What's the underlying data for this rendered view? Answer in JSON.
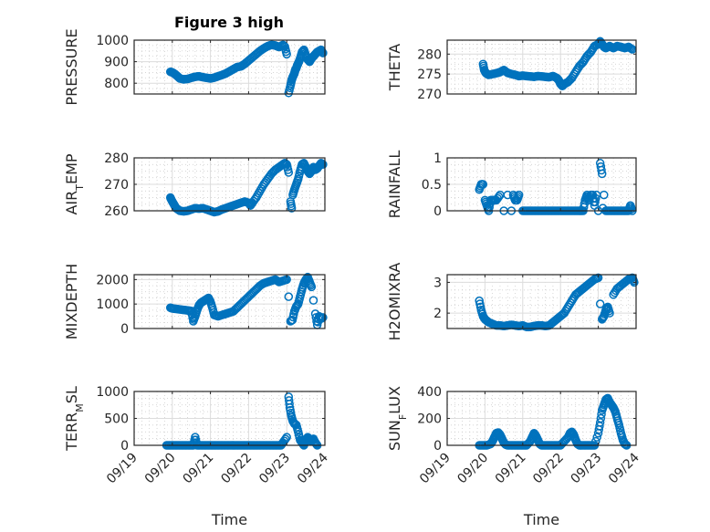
{
  "figure": {
    "title": "Figure 3 high",
    "marker_color": "#0072BD"
  },
  "chart_data": [
    {
      "type": "scatter",
      "name": "pressure",
      "title": "Figure 3 high",
      "ylabel": "PRESSURE",
      "ylabel_sub": "",
      "xlabel": "",
      "ylim": [
        750,
        1000
      ],
      "yticks": [
        800,
        900,
        1000
      ],
      "xlim_days": [
        0,
        5
      ],
      "xticks": [
        "09/19",
        "09/20",
        "09/21",
        "09/22",
        "09/23",
        "09/24"
      ],
      "show_xticklabels": false,
      "grid": true,
      "x_days": [
        0.95,
        1.0,
        1.05,
        1.1,
        1.15,
        1.2,
        1.3,
        1.4,
        1.5,
        1.6,
        1.7,
        1.8,
        1.9,
        2.0,
        2.1,
        2.2,
        2.3,
        2.4,
        2.5,
        2.6,
        2.7,
        2.8,
        2.9,
        3.0,
        3.1,
        3.2,
        3.3,
        3.4,
        3.5,
        3.6,
        3.7,
        3.8,
        3.9,
        3.95,
        4.0,
        4.05,
        4.1,
        4.13,
        4.16,
        4.2,
        4.22,
        4.25,
        4.28,
        4.32,
        4.36,
        4.4,
        4.45,
        4.5,
        4.55,
        4.6,
        4.65,
        4.7,
        4.75,
        4.8,
        4.85,
        4.9,
        4.95
      ],
      "y": [
        853,
        850,
        845,
        838,
        830,
        822,
        818,
        820,
        825,
        830,
        832,
        828,
        825,
        822,
        826,
        832,
        838,
        845,
        855,
        865,
        875,
        878,
        890,
        905,
        920,
        935,
        950,
        962,
        972,
        978,
        975,
        968,
        978,
        970,
        935,
        755,
        790,
        815,
        830,
        845,
        860,
        870,
        885,
        900,
        920,
        945,
        955,
        930,
        910,
        900,
        915,
        925,
        935,
        945,
        950,
        955,
        940
      ]
    },
    {
      "type": "scatter",
      "name": "theta",
      "ylabel": "THETA",
      "ylabel_sub": "",
      "xlabel": "",
      "ylim": [
        270,
        283.5
      ],
      "yticks": [
        270,
        275,
        280
      ],
      "xlim_days": [
        0,
        5
      ],
      "xticks": [
        "09/19",
        "09/20",
        "09/21",
        "09/22",
        "09/23",
        "09/24"
      ],
      "show_xticklabels": false,
      "grid": true,
      "x_days": [
        0.95,
        0.98,
        1.02,
        1.06,
        1.1,
        1.2,
        1.3,
        1.4,
        1.5,
        1.6,
        1.7,
        1.8,
        1.9,
        2.0,
        2.1,
        2.2,
        2.3,
        2.4,
        2.5,
        2.6,
        2.7,
        2.8,
        2.9,
        2.95,
        3.0,
        3.05,
        3.1,
        3.2,
        3.3,
        3.4,
        3.5,
        3.6,
        3.7,
        3.8,
        3.9,
        4.0,
        4.05,
        4.1,
        4.15,
        4.2,
        4.3,
        4.4,
        4.5,
        4.6,
        4.7,
        4.8,
        4.9
      ],
      "y": [
        277.5,
        276,
        275.3,
        275,
        274.8,
        275,
        275.2,
        275.5,
        276,
        275.3,
        275,
        274.8,
        274.5,
        274.6,
        274.5,
        274.4,
        274.3,
        274.5,
        274.4,
        274.3,
        274.2,
        274.5,
        274,
        273.5,
        272.5,
        272,
        272.5,
        273,
        274,
        275.5,
        277,
        278,
        279.5,
        280.5,
        282,
        282.5,
        283.2,
        282.5,
        281.8,
        281.5,
        282,
        281.5,
        282,
        281.8,
        281.5,
        281.8,
        281.2
      ]
    },
    {
      "type": "scatter",
      "name": "air-temp",
      "ylabel": "AIR",
      "ylabel_sub": "T",
      "ylabel_rest": "EMP",
      "xlabel": "",
      "ylim": [
        260,
        280
      ],
      "yticks": [
        260,
        270,
        280
      ],
      "xlim_days": [
        0,
        5
      ],
      "xticks": [
        "09/19",
        "09/20",
        "09/21",
        "09/22",
        "09/23",
        "09/24"
      ],
      "show_xticklabels": false,
      "grid": true,
      "x_days": [
        0.95,
        0.98,
        1.02,
        1.06,
        1.1,
        1.15,
        1.2,
        1.3,
        1.4,
        1.5,
        1.6,
        1.7,
        1.8,
        1.9,
        2.0,
        2.1,
        2.2,
        2.3,
        2.4,
        2.5,
        2.6,
        2.7,
        2.8,
        2.9,
        3.0,
        3.05,
        3.1,
        3.2,
        3.3,
        3.4,
        3.5,
        3.6,
        3.7,
        3.8,
        3.9,
        3.95,
        4.0,
        4.05,
        4.1,
        4.13,
        4.16,
        4.2,
        4.25,
        4.3,
        4.35,
        4.4,
        4.45,
        4.5,
        4.55,
        4.6,
        4.65,
        4.7,
        4.75,
        4.8,
        4.85,
        4.9,
        4.95
      ],
      "y": [
        265,
        264,
        263,
        262,
        261,
        260.5,
        260,
        259.8,
        260,
        260.5,
        261,
        260.8,
        261,
        260.5,
        260,
        259.5,
        259.8,
        260.5,
        261,
        261.5,
        262,
        262.5,
        263,
        263.5,
        263,
        262,
        263,
        265,
        267.5,
        270,
        272,
        274,
        275.5,
        276.5,
        277.5,
        278,
        277.5,
        274.5,
        263.5,
        261,
        266,
        268,
        270,
        272,
        275,
        277.5,
        278,
        276.5,
        275,
        274,
        275,
        276.5,
        275.5,
        276,
        277,
        278,
        277.5
      ]
    },
    {
      "type": "scatter",
      "name": "rainfall",
      "ylabel": "RAINFALL",
      "ylabel_sub": "",
      "xlabel": "",
      "ylim": [
        0,
        1
      ],
      "yticks": [
        0,
        0.5,
        1
      ],
      "xlim_days": [
        0,
        5
      ],
      "xticks": [
        "09/19",
        "09/20",
        "09/21",
        "09/22",
        "09/23",
        "09/24"
      ],
      "show_xticklabels": false,
      "grid": true,
      "x_days": [
        0.85,
        0.9,
        0.95,
        1.0,
        1.05,
        1.1,
        1.15,
        1.2,
        1.25,
        1.3,
        1.4,
        1.5,
        1.6,
        1.7,
        1.75,
        1.8,
        1.85,
        1.9,
        2.0,
        2.1,
        2.2,
        2.3,
        2.4,
        2.5,
        2.6,
        2.7,
        2.8,
        2.9,
        3.0,
        3.1,
        3.2,
        3.3,
        3.4,
        3.5,
        3.6,
        3.65,
        3.7,
        3.75,
        3.8,
        3.85,
        3.9,
        3.95,
        4.0,
        4.05,
        4.1,
        4.12,
        4.15,
        4.2,
        4.3,
        4.4,
        4.5,
        4.6,
        4.7,
        4.8,
        4.85,
        4.9
      ],
      "y": [
        0.4,
        0.5,
        0.5,
        0.2,
        0.1,
        0.0,
        0.2,
        0.2,
        0.2,
        0.2,
        0.3,
        0.0,
        0.3,
        0.0,
        0.3,
        0.2,
        0.2,
        0.3,
        0.0,
        0.0,
        0.0,
        0.0,
        0.0,
        0.0,
        0.0,
        0.0,
        0.0,
        0.0,
        0.0,
        0.0,
        0.0,
        0.0,
        0.0,
        0.0,
        0.0,
        0.2,
        0.3,
        0.2,
        0.3,
        0.3,
        0.1,
        0.3,
        0.0,
        0.9,
        0.7,
        0.05,
        0.3,
        0.0,
        0.0,
        0.0,
        0.0,
        0.0,
        0.0,
        0.0,
        0.1,
        0.0
      ]
    },
    {
      "type": "scatter",
      "name": "mixdepth",
      "ylabel": "MIXDEPTH",
      "ylabel_sub": "",
      "xlabel": "",
      "ylim": [
        0,
        2200
      ],
      "yticks": [
        0,
        1000,
        2000
      ],
      "xlim_days": [
        0,
        5
      ],
      "xticks": [
        "09/19",
        "09/20",
        "09/21",
        "09/22",
        "09/23",
        "09/24"
      ],
      "show_xticklabels": false,
      "grid": true,
      "x_days": [
        0.95,
        1.0,
        1.1,
        1.2,
        1.3,
        1.4,
        1.5,
        1.55,
        1.6,
        1.65,
        1.7,
        1.75,
        1.8,
        1.85,
        1.9,
        1.95,
        2.0,
        2.05,
        2.1,
        2.2,
        2.3,
        2.4,
        2.5,
        2.6,
        2.7,
        2.8,
        2.9,
        3.0,
        3.1,
        3.2,
        3.3,
        3.4,
        3.5,
        3.6,
        3.7,
        3.8,
        3.9,
        4.0,
        4.05,
        4.1,
        4.15,
        4.2,
        4.25,
        4.3,
        4.35,
        4.4,
        4.45,
        4.5,
        4.55,
        4.6,
        4.65,
        4.7,
        4.75,
        4.8,
        4.85,
        4.9,
        4.95
      ],
      "y": [
        850,
        820,
        800,
        780,
        760,
        740,
        720,
        300,
        500,
        750,
        950,
        1050,
        1100,
        1150,
        1200,
        1250,
        1100,
        850,
        550,
        500,
        550,
        600,
        650,
        700,
        850,
        1000,
        1150,
        1300,
        1450,
        1600,
        1750,
        1850,
        1900,
        1950,
        2000,
        1900,
        1950,
        2000,
        1300,
        300,
        350,
        700,
        900,
        1000,
        1300,
        1600,
        1850,
        2000,
        2100,
        1900,
        1700,
        1150,
        600,
        150,
        500,
        400,
        450
      ]
    },
    {
      "type": "scatter",
      "name": "h2omixra",
      "ylabel": "H2OMIXRA",
      "ylabel_sub": "",
      "xlabel": "",
      "ylim": [
        1.5,
        3.25
      ],
      "yticks": [
        2,
        3
      ],
      "xlim_days": [
        0,
        5
      ],
      "xticks": [
        "09/19",
        "09/20",
        "09/21",
        "09/22",
        "09/23",
        "09/24"
      ],
      "show_xticklabels": false,
      "grid": true,
      "x_days": [
        0.85,
        0.9,
        0.95,
        1.0,
        1.05,
        1.1,
        1.2,
        1.3,
        1.4,
        1.5,
        1.6,
        1.7,
        1.8,
        1.9,
        2.0,
        2.1,
        2.2,
        2.3,
        2.4,
        2.5,
        2.6,
        2.7,
        2.8,
        2.9,
        3.0,
        3.1,
        3.2,
        3.3,
        3.4,
        3.5,
        3.6,
        3.7,
        3.8,
        3.9,
        4.0,
        4.05,
        4.1,
        4.15,
        4.2,
        4.25,
        4.3,
        4.4,
        4.5,
        4.6,
        4.7,
        4.8,
        4.9,
        4.95
      ],
      "y": [
        2.4,
        2.1,
        1.9,
        1.8,
        1.75,
        1.7,
        1.65,
        1.6,
        1.6,
        1.58,
        1.6,
        1.62,
        1.6,
        1.58,
        1.6,
        1.55,
        1.55,
        1.58,
        1.6,
        1.6,
        1.58,
        1.6,
        1.7,
        1.8,
        1.9,
        2.0,
        2.2,
        2.4,
        2.6,
        2.7,
        2.8,
        2.9,
        3.0,
        3.1,
        3.15,
        2.3,
        1.8,
        1.9,
        2.1,
        2.2,
        2.0,
        2.6,
        2.8,
        2.9,
        3.0,
        3.1,
        3.15,
        3.0
      ]
    },
    {
      "type": "scatter",
      "name": "terr-msl",
      "ylabel": "TERR",
      "ylabel_sub": "M",
      "ylabel_rest": "SL",
      "xlabel": "Time",
      "ylim": [
        0,
        1000
      ],
      "yticks": [
        0,
        500,
        1000
      ],
      "xlim_days": [
        0,
        5
      ],
      "xticks": [
        "09/19",
        "09/20",
        "09/21",
        "09/22",
        "09/23",
        "09/24"
      ],
      "show_xticklabels": true,
      "grid": true,
      "x_days": [
        0.85,
        0.95,
        1.05,
        1.15,
        1.25,
        1.35,
        1.45,
        1.55,
        1.6,
        1.65,
        1.75,
        1.85,
        1.95,
        2.05,
        2.15,
        2.25,
        2.35,
        2.45,
        2.55,
        2.65,
        2.75,
        2.85,
        2.95,
        3.05,
        3.15,
        3.25,
        3.35,
        3.45,
        3.55,
        3.65,
        3.75,
        3.85,
        3.9,
        4.0,
        4.05,
        4.08,
        4.12,
        4.16,
        4.2,
        4.25,
        4.3,
        4.35,
        4.4,
        4.45,
        4.5,
        4.55,
        4.6,
        4.65,
        4.7,
        4.75,
        4.8
      ],
      "y": [
        0,
        0,
        0,
        0,
        0,
        0,
        0,
        0,
        150,
        0,
        0,
        0,
        0,
        0,
        0,
        0,
        0,
        0,
        0,
        0,
        0,
        0,
        0,
        0,
        0,
        0,
        0,
        0,
        0,
        0,
        0,
        0,
        50,
        150,
        900,
        700,
        550,
        450,
        400,
        380,
        250,
        100,
        50,
        0,
        80,
        150,
        100,
        80,
        120,
        50,
        0
      ]
    },
    {
      "type": "scatter",
      "name": "sun-flux",
      "ylabel": "SUN",
      "ylabel_sub": "F",
      "ylabel_rest": "LUX",
      "xlabel": "Time",
      "ylim": [
        0,
        400
      ],
      "yticks": [
        0,
        200,
        400
      ],
      "xlim_days": [
        0,
        5
      ],
      "xticks": [
        "09/19",
        "09/20",
        "09/21",
        "09/22",
        "09/23",
        "09/24"
      ],
      "show_xticklabels": true,
      "grid": true,
      "x_days": [
        0.85,
        0.95,
        1.05,
        1.15,
        1.2,
        1.25,
        1.3,
        1.35,
        1.4,
        1.45,
        1.5,
        1.55,
        1.6,
        1.7,
        1.8,
        1.9,
        2.0,
        2.1,
        2.2,
        2.25,
        2.3,
        2.35,
        2.4,
        2.45,
        2.5,
        2.6,
        2.7,
        2.8,
        2.9,
        3.0,
        3.1,
        3.2,
        3.25,
        3.3,
        3.35,
        3.4,
        3.45,
        3.5,
        3.6,
        3.7,
        3.8,
        3.9,
        4.0,
        4.05,
        4.1,
        4.15,
        4.2,
        4.25,
        4.3,
        4.35,
        4.4,
        4.45,
        4.5,
        4.55,
        4.6,
        4.65,
        4.7,
        4.75
      ],
      "y": [
        0,
        0,
        0,
        10,
        30,
        60,
        90,
        95,
        80,
        50,
        20,
        5,
        0,
        0,
        0,
        0,
        0,
        0,
        30,
        60,
        90,
        70,
        40,
        10,
        0,
        0,
        0,
        0,
        0,
        0,
        30,
        60,
        90,
        100,
        80,
        40,
        10,
        0,
        0,
        0,
        0,
        0,
        90,
        170,
        260,
        300,
        340,
        350,
        320,
        300,
        280,
        250,
        200,
        150,
        90,
        40,
        10,
        0
      ]
    }
  ]
}
